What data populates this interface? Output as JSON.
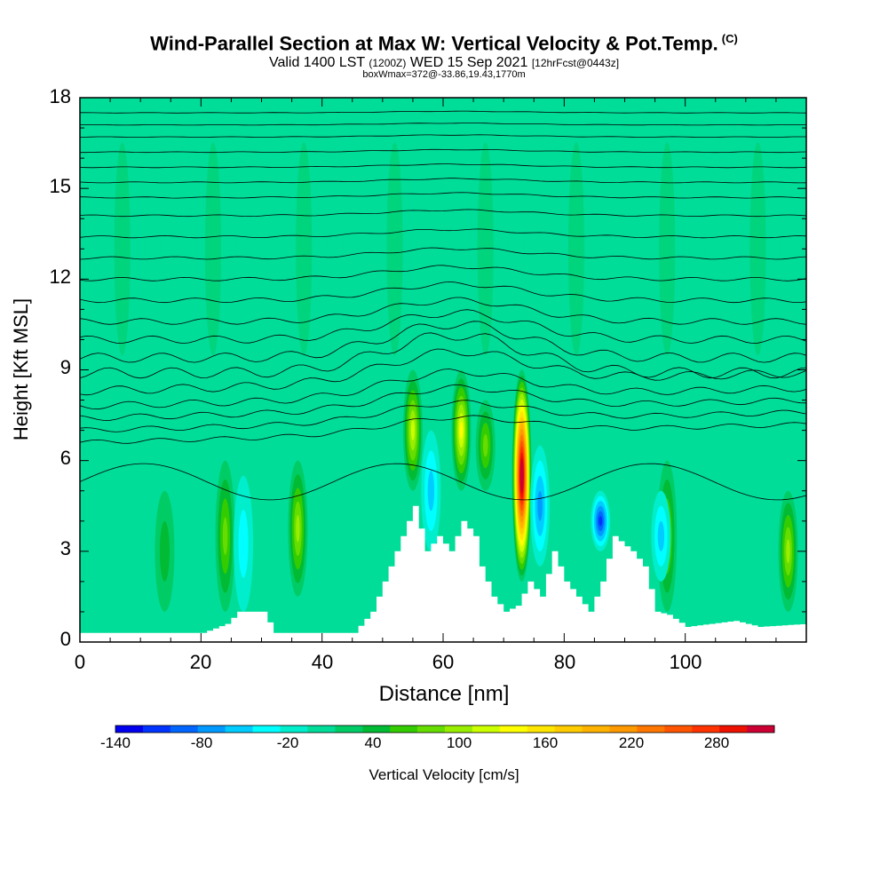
{
  "title": {
    "main": "Wind-Parallel Section at Max W: Vertical Velocity & Pot.Temp.",
    "copyright": "(C)",
    "valid_prefix": "Valid 1400 LST",
    "utc": "(1200Z)",
    "valid_date": "WED 15 Sep 2021",
    "forecast": "[12hrFcst@0443z]",
    "box_info": "boxWmax=372@-33.86,19.43,1770m"
  },
  "chart_data": {
    "type": "heatmap",
    "title": "Wind-Parallel Section at Max W: Vertical Velocity & Pot.Temp.",
    "xlabel": "Distance [nm]",
    "ylabel": "Height [Kft MSL]",
    "xlim": [
      0,
      120
    ],
    "ylim": [
      0,
      18
    ],
    "x_ticks": [
      "0",
      "20",
      "40",
      "60",
      "80",
      "100"
    ],
    "y_ticks": [
      "0",
      "3",
      "6",
      "9",
      "12",
      "15",
      "18"
    ],
    "background_w": 0,
    "updraft_cells": [
      {
        "x": 14,
        "z_min": 1,
        "z_max": 5,
        "w": 50
      },
      {
        "x": 24,
        "z_min": 1,
        "z_max": 6,
        "w": 85
      },
      {
        "x": 36,
        "z_min": 1.5,
        "z_max": 6,
        "w": 100
      },
      {
        "x": 55,
        "z_min": 5,
        "z_max": 9,
        "w": 120
      },
      {
        "x": 63,
        "z_min": 5,
        "z_max": 9,
        "w": 150
      },
      {
        "x": 67,
        "z_min": 5,
        "z_max": 8,
        "w": 90
      },
      {
        "x": 73,
        "z_min": 2,
        "z_max": 9,
        "w": 372
      },
      {
        "x": 97,
        "z_min": 1,
        "z_max": 6,
        "w": 90
      },
      {
        "x": 117,
        "z_min": 1,
        "z_max": 5,
        "w": 110
      }
    ],
    "downdraft_cells": [
      {
        "x": 27,
        "z_min": 1,
        "z_max": 5.5,
        "w": -50
      },
      {
        "x": 58,
        "z_min": 3,
        "z_max": 7,
        "w": -60
      },
      {
        "x": 76,
        "z_min": 2.5,
        "z_max": 6.5,
        "w": -80
      },
      {
        "x": 86,
        "z_min": 3,
        "z_max": 5,
        "w": -130
      },
      {
        "x": 96,
        "z_min": 2,
        "z_max": 5,
        "w": -70
      }
    ],
    "terrain": [
      [
        0,
        0.3
      ],
      [
        20,
        0.3
      ],
      [
        24,
        0.6
      ],
      [
        26,
        1
      ],
      [
        30,
        1
      ],
      [
        32,
        0.3
      ],
      [
        45,
        0.3
      ],
      [
        48,
        1
      ],
      [
        50,
        2
      ],
      [
        53,
        3.5
      ],
      [
        55,
        4.5
      ],
      [
        57,
        3
      ],
      [
        59,
        3.5
      ],
      [
        61,
        3
      ],
      [
        63,
        4
      ],
      [
        65,
        3.5
      ],
      [
        66,
        2.5
      ],
      [
        68,
        1.5
      ],
      [
        70,
        1
      ],
      [
        72,
        1.2
      ],
      [
        74,
        2
      ],
      [
        76,
        1.5
      ],
      [
        78,
        3
      ],
      [
        80,
        2
      ],
      [
        82,
        1.5
      ],
      [
        84,
        1
      ],
      [
        86,
        2
      ],
      [
        88,
        3.5
      ],
      [
        91,
        3
      ],
      [
        93,
        2.5
      ],
      [
        95,
        1
      ],
      [
        97,
        0.9
      ],
      [
        100,
        0.5
      ],
      [
        108,
        0.7
      ],
      [
        112,
        0.5
      ],
      [
        120,
        0.6
      ]
    ],
    "isentrope_levels": [
      6.6,
      7.0,
      7.4,
      7.8,
      8.3,
      8.9,
      9.4,
      10.0,
      10.6,
      11.3,
      12.0,
      12.7,
      13.4,
      14.1,
      14.7,
      15.2,
      15.7,
      16.2,
      16.7,
      17.1,
      17.5
    ],
    "colorbar": {
      "label": "Vertical Velocity [cm/s]",
      "ticks": [
        "-140",
        "-80",
        "-20",
        "40",
        "100",
        "160",
        "220",
        "280"
      ],
      "min": -140,
      "max": 320,
      "step": 20,
      "colors": [
        "#0000ee",
        "#0033ff",
        "#0066ff",
        "#0099ff",
        "#00ccff",
        "#00ffff",
        "#00eecc",
        "#00dd99",
        "#00cc66",
        "#00bb33",
        "#33cc00",
        "#66dd00",
        "#99ee00",
        "#ccff00",
        "#ffff00",
        "#ffe600",
        "#ffcc00",
        "#ffb300",
        "#ff9900",
        "#ff7700",
        "#ff5500",
        "#ff3300",
        "#ee1100",
        "#cc0033"
      ]
    }
  }
}
